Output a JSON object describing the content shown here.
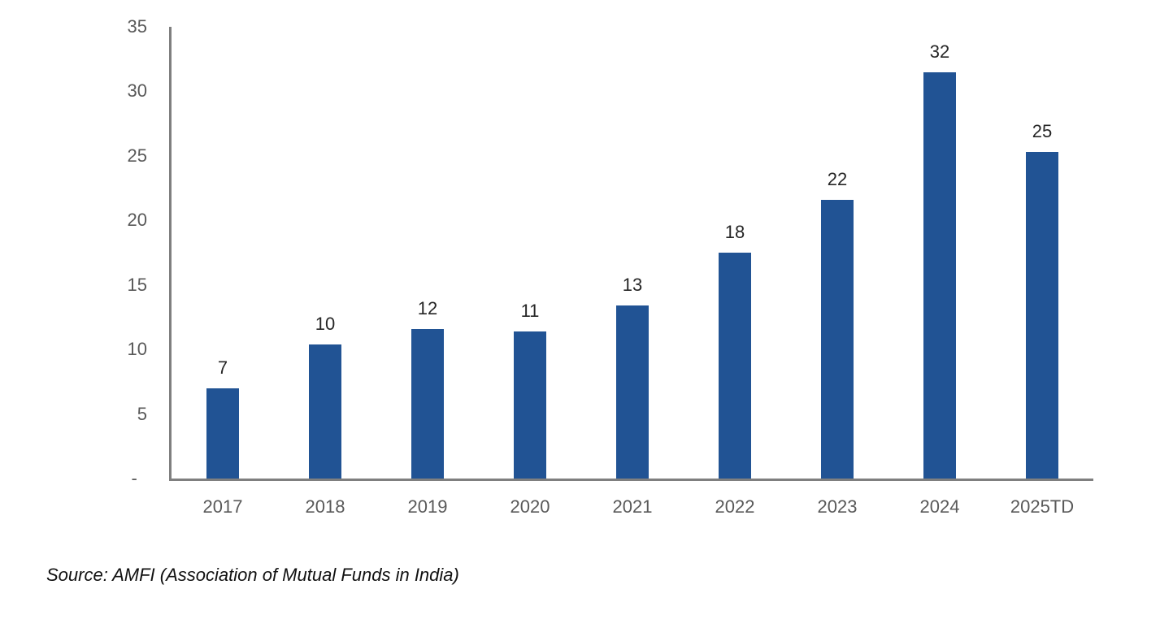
{
  "chart_data": {
    "type": "bar",
    "title": "",
    "categories": [
      "2017",
      "2018",
      "2019",
      "2020",
      "2021",
      "2022",
      "2023",
      "2024",
      "2025TD"
    ],
    "values": [
      7,
      10.4,
      11.6,
      11.4,
      13.4,
      17.5,
      21.6,
      31.5,
      25.3
    ],
    "bar_labels": [
      "7",
      "10",
      "12",
      "11",
      "13",
      "18",
      "22",
      "32",
      "25"
    ],
    "xlabel": "",
    "ylabel": "",
    "ylim": [
      0,
      35
    ],
    "yticks": [
      {
        "label": "35",
        "value": 35
      },
      {
        "label": "30",
        "value": 30
      },
      {
        "label": "25",
        "value": 25
      },
      {
        "label": "20",
        "value": 20
      },
      {
        "label": "15",
        "value": 15
      },
      {
        "label": "10",
        "value": 10
      },
      {
        "label": "5",
        "value": 5
      },
      {
        "label": "-",
        "value": 0
      }
    ],
    "grid": false,
    "legend": "none",
    "colors": {
      "bar": "#215394",
      "axis": "#7F7F7F",
      "tick_label": "#595959",
      "bar_label": "#262626"
    }
  },
  "source_note": "Source: AMFI (Association of Mutual Funds in India)"
}
